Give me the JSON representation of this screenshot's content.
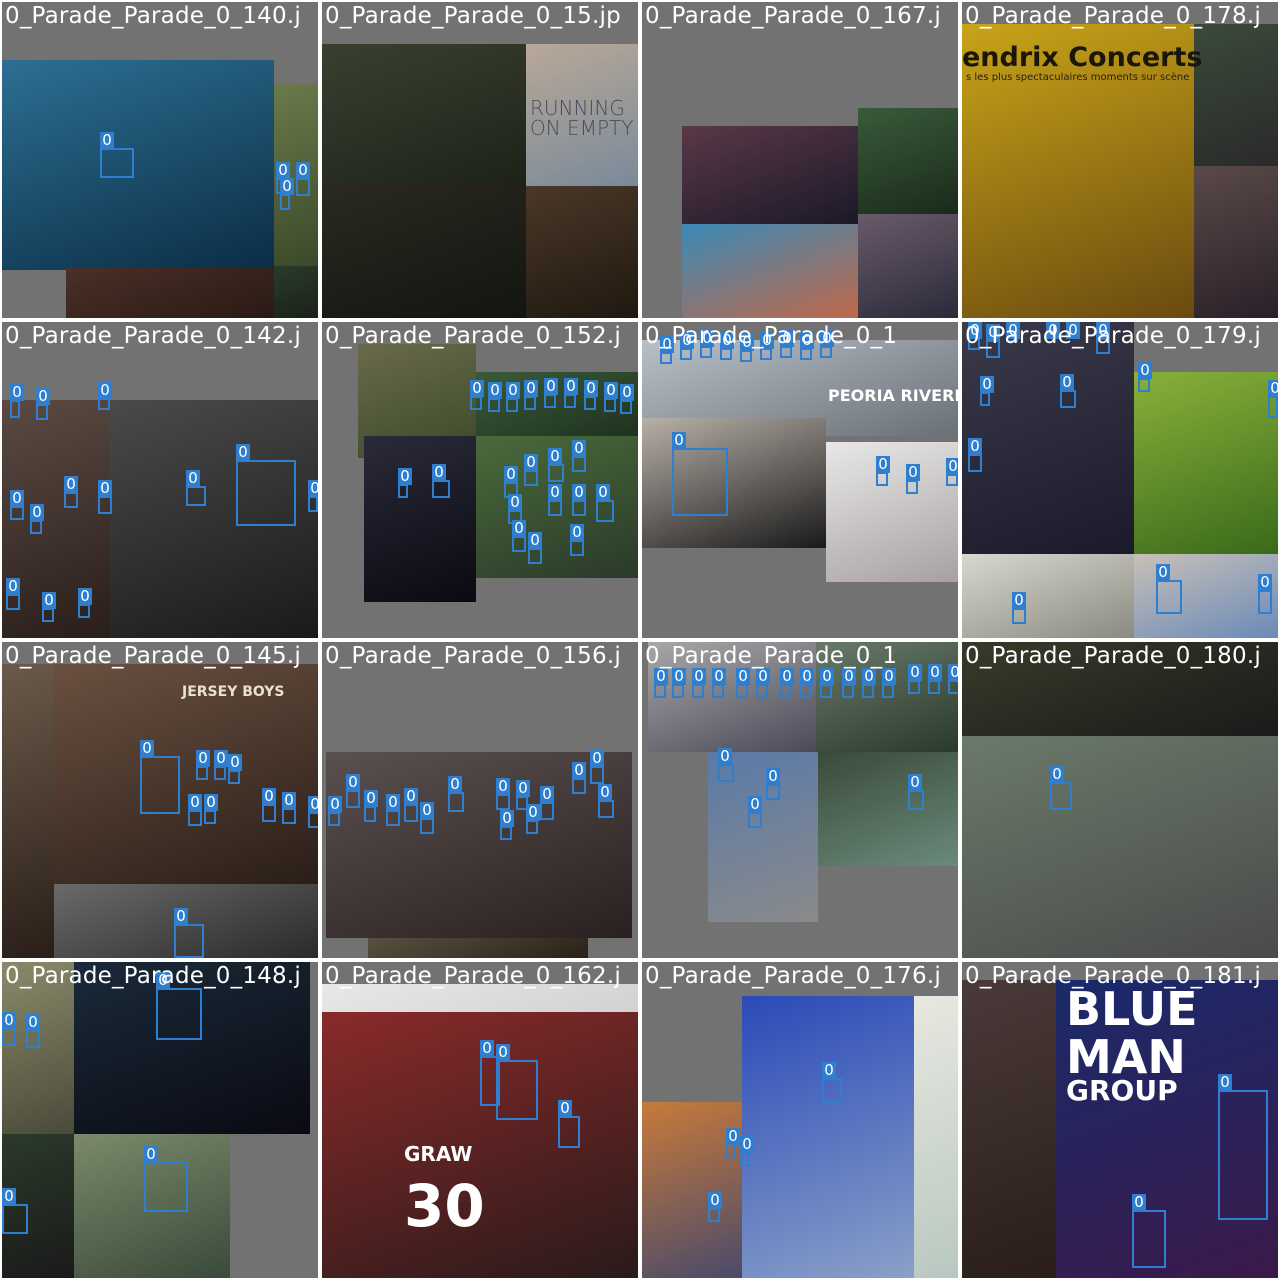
{
  "mosaic": {
    "box_color": "#2f7fd1",
    "tiles": [
      {
        "filename": "0_Parade_Parade_0_140.j"
      },
      {
        "filename": "0_Parade_Parade_0_15.jp"
      },
      {
        "filename": "0_Parade_Parade_0_167.j"
      },
      {
        "filename": "0_Parade_Parade_0_178.j"
      },
      {
        "filename": "0_Parade_Parade_0_142.j"
      },
      {
        "filename": "0_Parade_Parade_0_152.j"
      },
      {
        "filename": "0_Parade_Parade_0_1"
      },
      {
        "filename": "0_Parade_Parade_0_179.j"
      },
      {
        "filename": "0_Parade_Parade_0_145.j"
      },
      {
        "filename": "0_Parade_Parade_0_156.j"
      },
      {
        "filename": "0_Parade_Parade_0_1"
      },
      {
        "filename": "0_Parade_Parade_0_180.j"
      },
      {
        "filename": "0_Parade_Parade_0_148.j"
      },
      {
        "filename": "0_Parade_Parade_0_162.j"
      },
      {
        "filename": "0_Parade_Parade_0_176.j"
      },
      {
        "filename": "0_Parade_Parade_0_181.j"
      }
    ]
  },
  "detection_label": "0",
  "scene_text": {
    "concerts": "endrix Concerts",
    "concerts_sub": "s les plus spectaculaires moments sur scène",
    "running": "RUNNING",
    "on_empty": "ON EMPTY",
    "peoria": "PEORIA RIVERM",
    "graw": "GRAW",
    "jersey": "30",
    "blue": "BLUE",
    "man": "MAN",
    "group": "GROUP",
    "jersey_boys": "JERSEY BOYS"
  }
}
